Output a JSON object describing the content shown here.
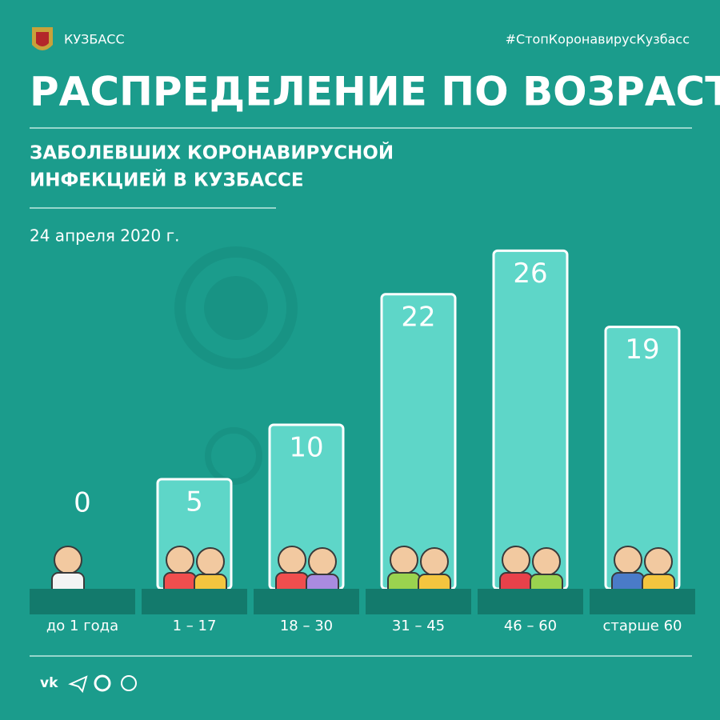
{
  "header": {
    "brand": "КУЗБАСС",
    "hashtag": "#СтопКоронавирусКузбасс"
  },
  "chart_data": {
    "type": "bar",
    "title": "РАСПРЕДЕЛЕНИЕ ПО ВОЗРАСТУ",
    "subtitle": [
      "ЗАБОЛЕВШИХ КОРОНАВИРУСНОЙ",
      "ИНФЕКЦИЕЙ В КУЗБАССЕ"
    ],
    "date": "24 апреля 2020 г.",
    "categories": [
      "до 1 года",
      "1 – 17",
      "18 – 30",
      "31 – 45",
      "46 – 60",
      "старше 60"
    ],
    "values": [
      0,
      5,
      10,
      22,
      26,
      19
    ],
    "color": "#5ed6c8"
  }
}
